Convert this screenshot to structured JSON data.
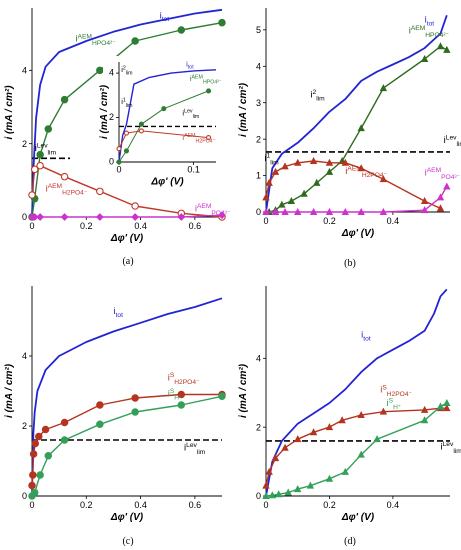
{
  "chart_data": [
    {
      "panel": "a",
      "type": "line",
      "panel_label": "(a)",
      "xlabel": "Δφ' (V)",
      "ylabel": "i (mA / cm²)",
      "xlim": [
        0,
        0.7
      ],
      "ylim": [
        0,
        5.7
      ],
      "xticks": [
        0,
        0.2,
        0.4,
        0.6
      ],
      "yticks": [
        0,
        2,
        4
      ],
      "tick_decimals": 0,
      "limiting_line": {
        "y": 1.6,
        "x_range": [
          0,
          0.14
        ]
      },
      "series": [
        {
          "name": "i_tot",
          "color": "#2323d6",
          "marker": "none",
          "x": [
            0,
            0.005,
            0.015,
            0.03,
            0.05,
            0.1,
            0.2,
            0.3,
            0.4,
            0.5,
            0.6,
            0.7
          ],
          "y": [
            0,
            1.3,
            2.7,
            3.6,
            4.1,
            4.5,
            4.8,
            5.05,
            5.25,
            5.4,
            5.55,
            5.65
          ]
        },
        {
          "name": "i^AEM_HPO4²⁻",
          "color": "#2e7d32",
          "marker": "circle",
          "filled": true,
          "x": [
            0,
            0.01,
            0.03,
            0.06,
            0.12,
            0.25,
            0.38,
            0.55,
            0.7
          ],
          "y": [
            0,
            0.5,
            1.7,
            2.4,
            3.2,
            4.0,
            4.8,
            5.1,
            5.3
          ]
        },
        {
          "name": "i^AEM_H2PO4⁻",
          "color": "#c0392b",
          "marker": "circle",
          "filled": false,
          "x": [
            0,
            0.01,
            0.03,
            0.12,
            0.25,
            0.38,
            0.55,
            0.7
          ],
          "y": [
            0.6,
            1.3,
            1.4,
            1.1,
            0.7,
            0.3,
            0.1,
            0
          ]
        },
        {
          "name": "i^AEM_PO4³⁻",
          "color": "#cc33cc",
          "marker": "diamond",
          "filled": true,
          "x": [
            0,
            0.01,
            0.03,
            0.12,
            0.25,
            0.38,
            0.55,
            0.7
          ],
          "y": [
            0,
            0,
            0,
            0,
            0,
            0,
            0,
            0.05
          ]
        }
      ],
      "labels": [
        {
          "text": "i",
          "sub": "tot",
          "color": "#2323d6",
          "x": 0.47,
          "y": 5.42
        },
        {
          "text": "i",
          "sup": "AEM",
          "sub": "HPO4²⁻",
          "color": "#2e7d32",
          "x": 0.16,
          "y": 4.78
        },
        {
          "text": "i",
          "sup": "AEM",
          "sub": "H2PO4⁻",
          "color": "#c0392b",
          "x": 0.05,
          "y": 0.7
        },
        {
          "text": "i",
          "sup": "AEM",
          "sub": "PO4³⁻",
          "color": "#cc33cc",
          "x": 0.6,
          "y": 0.15
        },
        {
          "text": "i",
          "sub": "lim",
          "sup": "Lev",
          "color": "#000000",
          "x": 0.01,
          "y": 1.8
        }
      ],
      "inset": {
        "xlabel": "Δφ' (V)",
        "ylabel": "i (mA / cm²)",
        "xlim": [
          0,
          0.13
        ],
        "ylim": [
          0,
          4.5
        ],
        "xticks": [
          0,
          0.1
        ],
        "yticks": [
          0,
          2,
          4
        ],
        "limiting_line": {
          "y": 1.6,
          "x_range": [
            0,
            0.13
          ]
        },
        "series": [
          {
            "name": "i_tot",
            "color": "#2323d6",
            "marker": "none",
            "x": [
              0,
              0.005,
              0.01,
              0.015,
              0.02,
              0.04,
              0.07,
              0.1,
              0.13
            ],
            "y": [
              0,
              1.2,
              1.7,
              2.6,
              3.5,
              3.8,
              4.0,
              4.1,
              4.15
            ]
          },
          {
            "name": "i^AEM_HPO4²⁻",
            "color": "#2e7d32",
            "marker": "circle",
            "filled": true,
            "x": [
              0,
              0.01,
              0.03,
              0.06,
              0.12
            ],
            "y": [
              0,
              0.5,
              1.7,
              2.4,
              3.2
            ]
          },
          {
            "name": "i^AEM_H2PO4⁻",
            "color": "#c0392b",
            "marker": "circle",
            "filled": false,
            "x": [
              0,
              0.01,
              0.03,
              0.12
            ],
            "y": [
              0.6,
              1.3,
              1.4,
              1.1
            ]
          }
        ],
        "labels": [
          {
            "text": "i",
            "sub": "tot",
            "color": "#2323d6",
            "x": 0.09,
            "y": 4.3
          },
          {
            "text": "i",
            "sup": "AEM",
            "sub": "HPO4²⁻",
            "color": "#2e7d32",
            "x": 0.095,
            "y": 3.65
          },
          {
            "text": "i",
            "sup": "AEM",
            "sub": "H2PO4⁻",
            "color": "#c0392b",
            "x": 0.085,
            "y": 1.0
          },
          {
            "text": "i",
            "sub": "lim",
            "sup": "Lev",
            "color": "#000000",
            "x": 0.085,
            "y": 2.1
          },
          {
            "text": "i",
            "sub": "lim",
            "sup": "2",
            "color": "#000000",
            "x": 0.003,
            "y": 4.05
          },
          {
            "text": "i",
            "sub": "lim",
            "sup": "1",
            "color": "#000000",
            "x": 0.003,
            "y": 2.6
          }
        ]
      }
    },
    {
      "panel": "b",
      "type": "line",
      "panel_label": "(b)",
      "xlabel": "Δφ' (V)",
      "ylabel": "i (mA / cm²)",
      "xlim": [
        0,
        0.58
      ],
      "ylim": [
        0,
        5.6
      ],
      "xticks": [
        0,
        0.2,
        0.4
      ],
      "yticks": [
        0,
        1,
        2,
        3,
        4,
        5
      ],
      "tick_decimals": 1,
      "limiting_line": {
        "y": 1.65,
        "x_range": [
          0,
          0.58
        ]
      },
      "series": [
        {
          "name": "i_tot",
          "color": "#2323d6",
          "marker": "none",
          "x": [
            0,
            0.02,
            0.05,
            0.1,
            0.15,
            0.2,
            0.25,
            0.3,
            0.35,
            0.4,
            0.45,
            0.5,
            0.55,
            0.57
          ],
          "y": [
            0,
            1.2,
            1.6,
            1.9,
            2.3,
            2.75,
            3.1,
            3.6,
            3.85,
            4.05,
            4.25,
            4.5,
            4.9,
            5.4
          ]
        },
        {
          "name": "i^AEM_HPO4²⁻",
          "color": "#2e6b1e",
          "marker": "triangle",
          "filled": true,
          "x": [
            0.01,
            0.03,
            0.05,
            0.08,
            0.12,
            0.16,
            0.2,
            0.24,
            0.3,
            0.37,
            0.5,
            0.55,
            0.57
          ],
          "y": [
            0,
            0.05,
            0.2,
            0.3,
            0.5,
            0.8,
            1.1,
            1.4,
            2.3,
            3.4,
            4.2,
            4.55,
            4.45
          ]
        },
        {
          "name": "i^AEM_H2PO4⁻",
          "color": "#b5341f",
          "marker": "triangle",
          "filled": true,
          "x": [
            0,
            0.01,
            0.03,
            0.06,
            0.1,
            0.15,
            0.2,
            0.25,
            0.3,
            0.37,
            0.5,
            0.55
          ],
          "y": [
            0.4,
            0.8,
            1.1,
            1.25,
            1.35,
            1.4,
            1.35,
            1.35,
            1.2,
            0.9,
            0.3,
            0.1
          ]
        },
        {
          "name": "i^AEM_PO4³⁻",
          "color": "#cc33cc",
          "marker": "triangle",
          "filled": true,
          "x": [
            0,
            0.03,
            0.06,
            0.1,
            0.15,
            0.2,
            0.25,
            0.3,
            0.37,
            0.5,
            0.55,
            0.57
          ],
          "y": [
            0,
            0,
            0,
            0,
            0,
            0,
            0,
            0,
            0,
            0.05,
            0.4,
            0.7
          ]
        }
      ],
      "labels": [
        {
          "text": "i",
          "sub": "tot",
          "color": "#2323d6",
          "x": 0.5,
          "y": 5.2
        },
        {
          "text": "i",
          "sup": "AEM",
          "sub": "HPO4²⁻",
          "color": "#2e6b1e",
          "x": 0.45,
          "y": 4.9
        },
        {
          "text": "i",
          "sup": "AEM",
          "sub": "H2PO4⁻",
          "color": "#b5341f",
          "x": 0.25,
          "y": 1.05
        },
        {
          "text": "i",
          "sup": "AEM",
          "sub": "PO4³⁻",
          "color": "#cc33cc",
          "x": 0.5,
          "y": 1.0
        },
        {
          "text": "i",
          "sub": "lim",
          "sup": "Lev",
          "color": "#000000",
          "x": 0.56,
          "y": 1.9
        },
        {
          "text": "i",
          "sub": "lim",
          "sup": "2",
          "color": "#000000",
          "x": 0.14,
          "y": 3.15
        },
        {
          "text": "i",
          "sub": "lim",
          "sup": "1",
          "color": "#000000",
          "x": -0.005,
          "y": 1.4
        }
      ]
    },
    {
      "panel": "c",
      "type": "line",
      "panel_label": "(c)",
      "xlabel": "Δφ' (V)",
      "ylabel": "i (mA / cm²)",
      "xlim": [
        0,
        0.7
      ],
      "ylim": [
        0,
        6
      ],
      "xticks": [
        0,
        0.2,
        0.4,
        0.6
      ],
      "yticks": [
        0,
        2,
        4
      ],
      "tick_decimals": 0,
      "limiting_line": {
        "y": 1.6,
        "x_range": [
          0,
          0.7
        ]
      },
      "series": [
        {
          "name": "i_tot",
          "color": "#2323d6",
          "marker": "none",
          "x": [
            0,
            0.002,
            0.005,
            0.01,
            0.02,
            0.05,
            0.1,
            0.2,
            0.3,
            0.4,
            0.5,
            0.6,
            0.7
          ],
          "y": [
            0,
            0.8,
            1.8,
            2.4,
            3.0,
            3.6,
            4.0,
            4.4,
            4.7,
            4.95,
            5.2,
            5.4,
            5.65
          ]
        },
        {
          "name": "i^S_H2PO4⁻",
          "color": "#b5341f",
          "marker": "circle",
          "filled": true,
          "x": [
            0,
            0.003,
            0.006,
            0.012,
            0.025,
            0.05,
            0.12,
            0.25,
            0.38,
            0.55,
            0.7
          ],
          "y": [
            0.3,
            0.6,
            1.2,
            1.5,
            1.7,
            1.9,
            2.1,
            2.6,
            2.8,
            2.9,
            2.9
          ]
        },
        {
          "name": "i^S_H⁺",
          "color": "#33a05a",
          "marker": "circle",
          "filled": true,
          "x": [
            0,
            0.01,
            0.03,
            0.06,
            0.12,
            0.25,
            0.38,
            0.55,
            0.7
          ],
          "y": [
            0,
            0.1,
            0.6,
            1.15,
            1.6,
            2.05,
            2.4,
            2.6,
            2.85
          ]
        }
      ],
      "labels": [
        {
          "text": "i",
          "sub": "tot",
          "color": "#2323d6",
          "x": 0.3,
          "y": 5.2
        },
        {
          "text": "i",
          "sup": "S",
          "sub": "H2PO4⁻",
          "color": "#b5341f",
          "x": 0.5,
          "y": 3.3
        },
        {
          "text": "i",
          "sup": "S",
          "sub": "H⁺",
          "color": "#33a05a",
          "x": 0.5,
          "y": 2.85
        },
        {
          "text": "i",
          "sub": "lim",
          "sup": "Lev",
          "color": "#000000",
          "x": 0.56,
          "y": 1.3
        }
      ]
    },
    {
      "panel": "d",
      "type": "line",
      "panel_label": "(d)",
      "xlabel": "Δφ' (V)",
      "ylabel": "i (mA / cm²)",
      "xlim": [
        0,
        0.58
      ],
      "ylim": [
        0,
        6.1
      ],
      "xticks": [
        0,
        0.2,
        0.4
      ],
      "yticks": [
        0,
        2,
        4
      ],
      "tick_decimals": 1,
      "limiting_line": {
        "y": 1.6,
        "x_range": [
          0,
          0.58
        ]
      },
      "series": [
        {
          "name": "i_tot",
          "color": "#2323d6",
          "marker": "none",
          "x": [
            0,
            0.02,
            0.05,
            0.1,
            0.15,
            0.2,
            0.25,
            0.3,
            0.35,
            0.4,
            0.45,
            0.5,
            0.53,
            0.55,
            0.57
          ],
          "y": [
            0,
            1.0,
            1.6,
            2.1,
            2.4,
            2.7,
            3.1,
            3.6,
            4.0,
            4.25,
            4.5,
            4.8,
            5.3,
            5.8,
            6.0
          ]
        },
        {
          "name": "i^S_H2PO4⁻",
          "color": "#b5341f",
          "marker": "triangle",
          "filled": true,
          "x": [
            0,
            0.01,
            0.03,
            0.06,
            0.1,
            0.15,
            0.2,
            0.24,
            0.3,
            0.37,
            0.5,
            0.55,
            0.57
          ],
          "y": [
            0.3,
            0.7,
            1.1,
            1.4,
            1.65,
            1.85,
            2.0,
            2.2,
            2.35,
            2.45,
            2.5,
            2.55,
            2.55
          ]
        },
        {
          "name": "i^S_H⁺",
          "color": "#33a05a",
          "marker": "triangle",
          "filled": true,
          "x": [
            0,
            0.02,
            0.04,
            0.07,
            0.1,
            0.14,
            0.2,
            0.25,
            0.3,
            0.35,
            0.5,
            0.55,
            0.57
          ],
          "y": [
            0,
            0.02,
            0.05,
            0.1,
            0.2,
            0.3,
            0.5,
            0.7,
            1.2,
            1.65,
            2.2,
            2.6,
            2.7
          ]
        }
      ],
      "labels": [
        {
          "text": "i",
          "sub": "tot",
          "color": "#2323d6",
          "x": 0.3,
          "y": 4.6
        },
        {
          "text": "i",
          "sup": "S",
          "sub": "H2PO4⁻",
          "color": "#b5341f",
          "x": 0.36,
          "y": 3.0
        },
        {
          "text": "i",
          "sup": "S",
          "sub": "H⁺",
          "color": "#33a05a",
          "x": 0.38,
          "y": 2.62
        },
        {
          "text": "i",
          "sub": "lim",
          "sup": "Lev",
          "color": "#000000",
          "x": 0.55,
          "y": 1.35
        }
      ]
    }
  ]
}
